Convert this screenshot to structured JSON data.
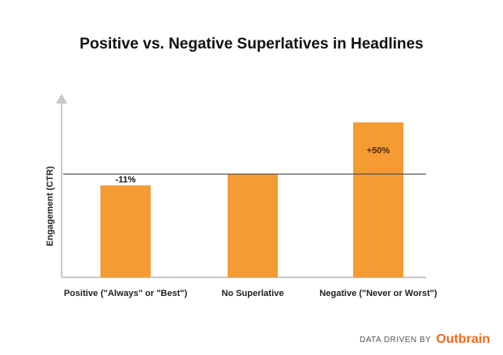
{
  "chart_data": {
    "type": "bar",
    "title": "Positive vs. Negative Superlatives in Headlines",
    "xlabel": "",
    "ylabel": "Engagement (CTR)",
    "categories": [
      "Positive (\"Always\" or \"Best\")",
      "No Superlative",
      "Negative (\"Never or Worst\")"
    ],
    "values": [
      89,
      100,
      150
    ],
    "data_labels": [
      "-11%",
      "",
      "+50%"
    ],
    "baseline_value": 100,
    "ylim": [
      0,
      180
    ],
    "grid": false,
    "bar_color": "#f49b33"
  },
  "footer": {
    "prefix": "DATA DRIVEN BY",
    "brand": "Outbrain",
    "brand_color": "#f26b21"
  }
}
